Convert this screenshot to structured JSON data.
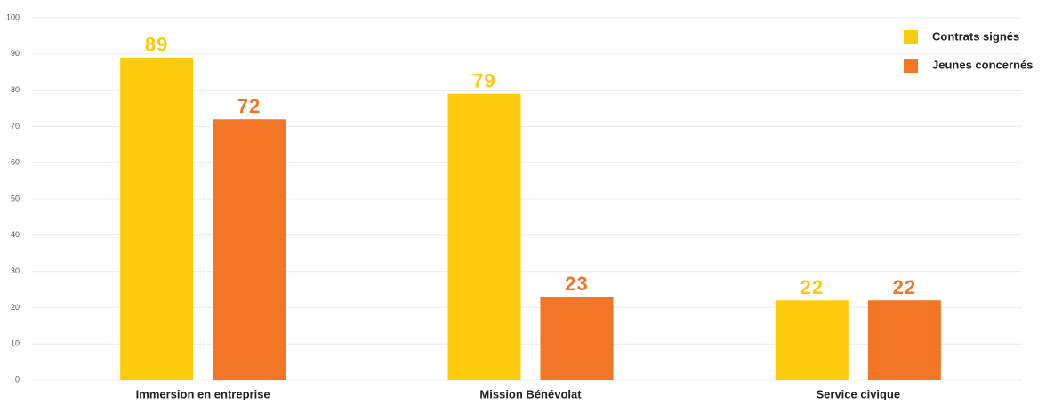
{
  "chart_data": {
    "type": "bar",
    "categories": [
      "Immersion en entreprise",
      "Mission Bénévolat",
      "Service civique"
    ],
    "series": [
      {
        "name": "Contrats signés",
        "color": "#fccb0b",
        "values": [
          89,
          79,
          22
        ]
      },
      {
        "name": "Jeunes concernés",
        "color": "#f37526",
        "values": [
          72,
          23,
          22
        ]
      }
    ],
    "ylim": [
      0,
      100
    ],
    "yticks": [
      0,
      10,
      20,
      30,
      40,
      50,
      60,
      70,
      80,
      90,
      100
    ],
    "grid": true,
    "legend": "top-right"
  }
}
